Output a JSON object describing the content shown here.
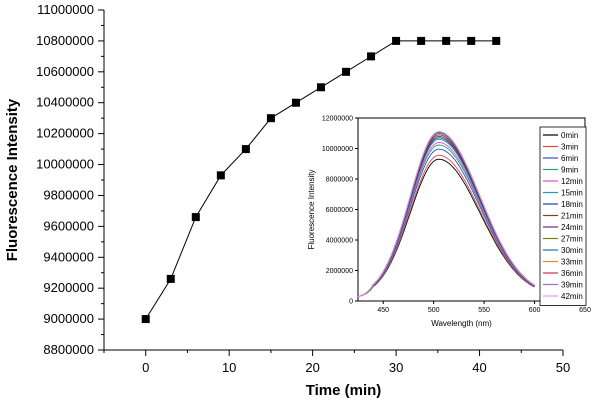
{
  "chart_data": [
    {
      "type": "line",
      "xlabel": "Time (min)",
      "ylabel": "Fluorescence Intensity",
      "xlim": [
        -5,
        50
      ],
      "ylim": [
        8800000,
        11000000
      ],
      "x_ticks": [
        "0",
        "10",
        "20",
        "30",
        "40",
        "50"
      ],
      "y_ticks": [
        "8800000",
        "9000000",
        "9200000",
        "9400000",
        "9600000",
        "9800000",
        "10000000",
        "10200000",
        "10400000",
        "10600000",
        "10800000",
        "11000000"
      ],
      "series": [
        {
          "x": [
            0,
            3,
            6,
            9,
            12,
            15,
            18,
            21,
            24,
            27,
            30,
            33,
            36,
            39,
            42
          ],
          "y": [
            9000000,
            9260000,
            9660000,
            9930000,
            10100000,
            10300000,
            10400000,
            10500000,
            10600000,
            10700000,
            10800000,
            10800000,
            10800000,
            10800000,
            10800000
          ],
          "color": "#000000",
          "marker": "square"
        }
      ],
      "grid": false
    },
    {
      "type": "line",
      "xlabel": "Wavelength (nm)",
      "ylabel": "Fluorescence Intensity",
      "xlim": [
        425,
        650
      ],
      "ylim": [
        0,
        12000000
      ],
      "x_ticks": [
        "450",
        "500",
        "550",
        "600",
        "650"
      ],
      "y_ticks": [
        "0",
        "2000000",
        "4000000",
        "6000000",
        "8000000",
        "10000000",
        "12000000"
      ],
      "legend_position": "right",
      "peak_wavelength": 505,
      "series": [
        {
          "name": "0min",
          "color": "#000000",
          "peak": 9000000
        },
        {
          "name": "3min",
          "color": "#e8463c",
          "peak": 9260000
        },
        {
          "name": "6min",
          "color": "#2a52d6",
          "peak": 9660000
        },
        {
          "name": "9min",
          "color": "#2aa56a",
          "peak": 9930000
        },
        {
          "name": "12min",
          "color": "#d94fd0",
          "peak": 10100000
        },
        {
          "name": "15min",
          "color": "#1e9ab0",
          "peak": 10300000
        },
        {
          "name": "18min",
          "color": "#1d3fa8",
          "peak": 10400000
        },
        {
          "name": "21min",
          "color": "#8a3a2a",
          "peak": 10500000
        },
        {
          "name": "24min",
          "color": "#6a2a8a",
          "peak": 10600000
        },
        {
          "name": "27min",
          "color": "#7a7a18",
          "peak": 10700000
        },
        {
          "name": "30min",
          "color": "#2a6fa8",
          "peak": 10750000
        },
        {
          "name": "33min",
          "color": "#e38a2a",
          "peak": 10800000
        },
        {
          "name": "36min",
          "color": "#d62a5a",
          "peak": 10800000
        },
        {
          "name": "39min",
          "color": "#9a6ae0",
          "peak": 10800000
        },
        {
          "name": "42min",
          "color": "#d6a0e0",
          "peak": 10800000
        }
      ]
    }
  ]
}
